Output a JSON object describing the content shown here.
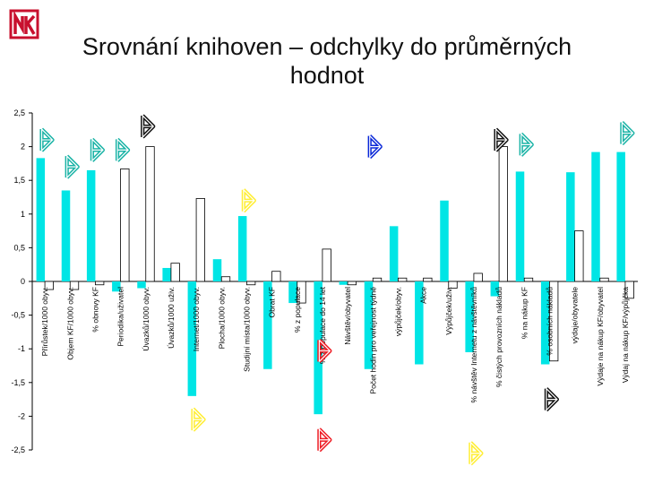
{
  "title_lines": [
    "Srovnání knihoven – odchylky do průměrných",
    "hodnot"
  ],
  "logo": {
    "icon": "nk-logo-icon",
    "color": "#c8102e"
  },
  "colors": {
    "cyan": "#00e5e5",
    "white": "#ffffff",
    "outline": "#000000",
    "marker_teal": "#1ab3a6",
    "marker_black": "#111111",
    "marker_blue": "#0a28d8",
    "marker_yellow": "#ffee33",
    "marker_red": "#ee1c24"
  },
  "chart_data": {
    "type": "bar",
    "ylim": [
      -2.5,
      2.5
    ],
    "yticks": [
      "2,5",
      "2",
      "1,5",
      "1",
      "0,5",
      "0",
      "-0,5",
      "-1",
      "-1,5",
      "-2",
      "-2,5"
    ],
    "ytick_values": [
      2.5,
      2,
      1.5,
      1,
      0.5,
      0,
      -0.5,
      -1,
      -1.5,
      -2,
      -2.5
    ],
    "categories": [
      "Přírůstek/1000 obyv.",
      "Objem KF/1000 obyv.",
      "% obnovy KF",
      "Periodika/uživatel",
      "Úvazků/1000 obyv.",
      "Úvazků/1000 uživ.",
      "Internet/1000 obyv.",
      "Plocha/1000 obyv.",
      "Studijní místa/1000 obyv.",
      "Obrat KF",
      "% z populace",
      "% z populace do 14 let",
      "Návštěv/obyvatel",
      "Počet hodin pro veřejnost týdně",
      "výpůjček/obyv.",
      "Akce",
      "Výpůjček/uživ.",
      "% návštěv Internetu z návštěvníků",
      "% čistých provozních nákladů",
      "% na nákup KF",
      "% osobních nákladů",
      "výdaje/obyvatele",
      "Výdaje na nákup KF/obyvatel",
      "Výdaj na nákup KF/výpůjčka"
    ],
    "series": [
      {
        "color": "cyan",
        "values": [
          1.83,
          1.35,
          1.65,
          -0.15,
          -0.1,
          0.2,
          -1.7,
          0.33,
          0.97,
          -1.3,
          -0.32,
          -1.97,
          -0.05,
          -1.3,
          0.82,
          -1.23,
          1.2,
          -1.05,
          -0.22,
          1.63,
          -1.23,
          1.62,
          1.92,
          1.92
        ]
      },
      {
        "color": "white",
        "values": [
          -0.12,
          -0.12,
          -0.05,
          1.67,
          2.0,
          0.27,
          1.23,
          0.07,
          -0.05,
          0.15,
          -0.32,
          0.48,
          -0.05,
          0.05,
          0.05,
          0.05,
          -0.1,
          0.12,
          2.0,
          0.05,
          -1.18,
          0.75,
          0.05,
          -0.25
        ]
      }
    ],
    "markers": [
      {
        "category": 0,
        "value": 2.1,
        "color": "marker_teal",
        "icon": "arrow-up-icon"
      },
      {
        "category": 1,
        "value": 1.7,
        "color": "marker_teal",
        "icon": "arrow-up-icon"
      },
      {
        "category": 2,
        "value": 1.95,
        "color": "marker_teal",
        "icon": "arrow-up-icon"
      },
      {
        "category": 3,
        "value": 1.95,
        "color": "marker_teal",
        "icon": "arrow-up-icon"
      },
      {
        "category": 4,
        "value": 2.3,
        "color": "marker_black",
        "icon": "arrow-up-icon"
      },
      {
        "category": 8,
        "value": 1.2,
        "color": "marker_yellow",
        "icon": "arrow-up-icon"
      },
      {
        "category": 11,
        "value": -1.03,
        "color": "marker_red",
        "icon": "arrow-down-icon"
      },
      {
        "category": 13,
        "value": 2.0,
        "color": "marker_blue",
        "icon": "arrow-up-icon"
      },
      {
        "category": 18,
        "value": 2.1,
        "color": "marker_black",
        "icon": "arrow-up-icon"
      },
      {
        "category": 19,
        "value": 2.03,
        "color": "marker_teal",
        "icon": "arrow-up-icon"
      },
      {
        "category": 23,
        "value": 2.2,
        "color": "marker_teal",
        "icon": "arrow-up-icon"
      },
      {
        "category": 6,
        "value": -2.05,
        "color": "marker_yellow",
        "icon": "arrow-down-icon"
      },
      {
        "category": 11,
        "value": -2.35,
        "color": "marker_red",
        "icon": "arrow-down-icon"
      },
      {
        "category": 17,
        "value": -2.55,
        "color": "marker_yellow",
        "icon": "arrow-down-icon"
      },
      {
        "category": 20,
        "value": -1.75,
        "color": "marker_black",
        "icon": "arrow-down-icon"
      }
    ],
    "grid": false,
    "legend": "none"
  }
}
